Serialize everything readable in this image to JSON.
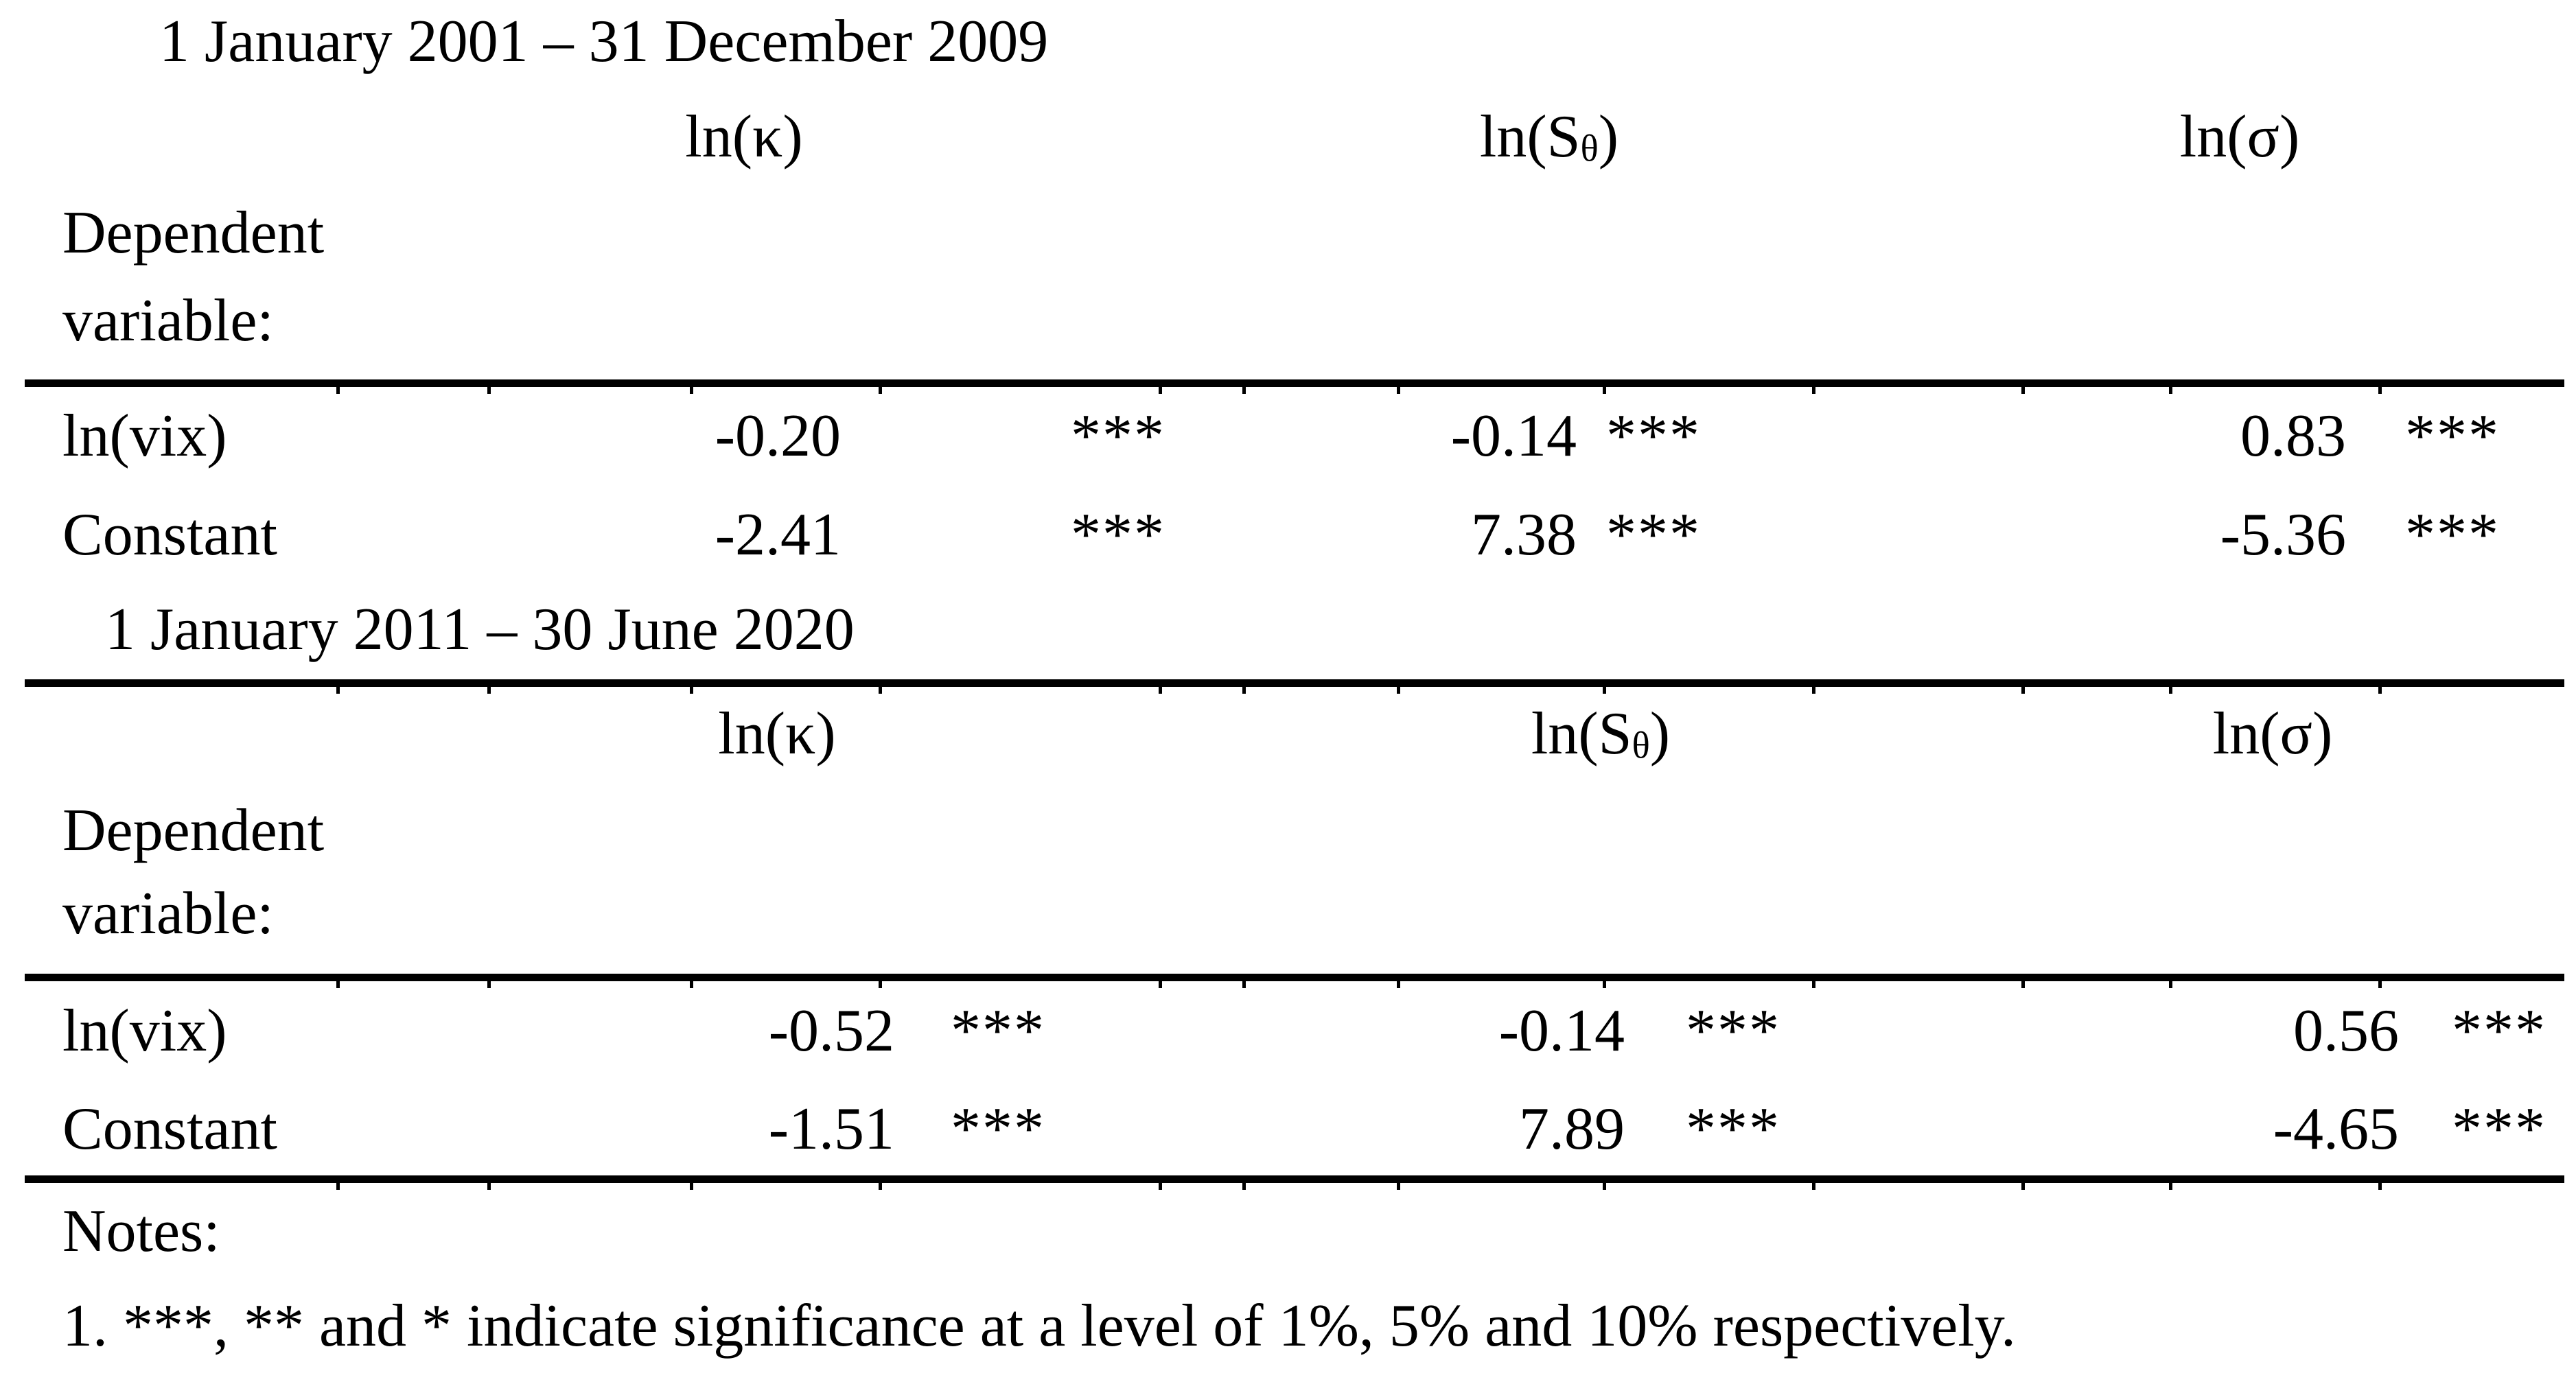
{
  "document": {
    "background_color": "#ffffff",
    "text_color": "#000000"
  },
  "sections": [
    {
      "period": "1 January 2001 – 31 December 2009",
      "columns": [
        {
          "pre": "ln(κ)",
          "sub": "",
          "post": ""
        },
        {
          "pre": "ln(S",
          "sub": "θ",
          "post": ")"
        },
        {
          "pre": "ln(σ)",
          "sub": "",
          "post": ""
        }
      ],
      "dependent_label": [
        "Dependent",
        "variable:"
      ],
      "rows": [
        {
          "label": "ln(vix)",
          "cells": [
            {
              "value": "-0.20",
              "stars": "***"
            },
            {
              "value": "-0.14",
              "stars": "***"
            },
            {
              "value": "0.83",
              "stars": "***"
            }
          ]
        },
        {
          "label": "Constant",
          "cells": [
            {
              "value": "-2.41",
              "stars": "***"
            },
            {
              "value": "7.38",
              "stars": "***"
            },
            {
              "value": "-5.36",
              "stars": "***"
            }
          ]
        }
      ]
    },
    {
      "period": "1 January 2011 – 30 June 2020",
      "columns": [
        {
          "pre": "ln(κ)",
          "sub": "",
          "post": ""
        },
        {
          "pre": "ln(S",
          "sub": "θ",
          "post": ")"
        },
        {
          "pre": "ln(σ)",
          "sub": "",
          "post": ""
        }
      ],
      "dependent_label": [
        "Dependent",
        "variable:"
      ],
      "rows": [
        {
          "label": "ln(vix)",
          "cells": [
            {
              "value": "-0.52",
              "stars": "***"
            },
            {
              "value": "-0.14",
              "stars": "***"
            },
            {
              "value": "0.56",
              "stars": "***"
            }
          ]
        },
        {
          "label": "Constant",
          "cells": [
            {
              "value": "-1.51",
              "stars": "***"
            },
            {
              "value": "7.89",
              "stars": "***"
            },
            {
              "value": "-4.65",
              "stars": "***"
            }
          ]
        }
      ]
    }
  ],
  "notes": {
    "heading": "Notes:",
    "items": [
      "1. ***, ** and * indicate significance at a level of 1%, 5% and 10% respectively."
    ]
  }
}
